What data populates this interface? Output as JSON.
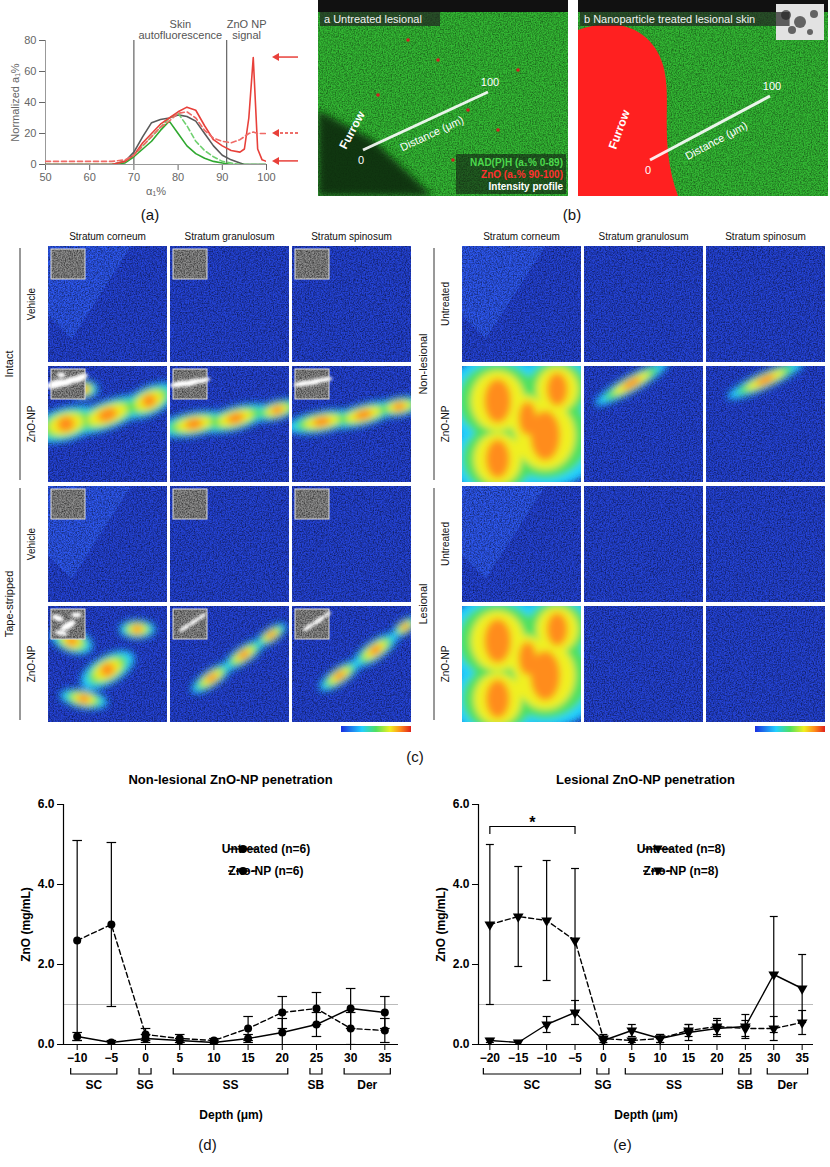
{
  "chart_data": [
    {
      "type": "line",
      "caption": "(a)",
      "x_label": "α₁%",
      "y_label": "Normalized a₁%",
      "x": [
        50,
        55,
        60,
        65,
        68,
        70,
        72,
        74,
        76,
        78,
        80,
        82,
        84,
        86,
        88,
        90,
        92,
        94,
        95,
        96,
        97,
        98,
        99,
        100
      ],
      "series": [
        {
          "color": "#5a5a5a",
          "line_style": "solid",
          "values": [
            0,
            0,
            0,
            0,
            2,
            8,
            18,
            27,
            29,
            30,
            32,
            31,
            28,
            20,
            12,
            6,
            3,
            1,
            0,
            0,
            0,
            0,
            0,
            0
          ]
        },
        {
          "color": "#2fa82f",
          "line_style": "solid",
          "values": [
            0,
            0,
            0,
            0,
            1,
            5,
            10,
            15,
            22,
            28,
            20,
            12,
            7,
            4,
            2,
            1,
            0,
            0,
            0,
            0,
            0,
            0,
            0,
            0
          ]
        },
        {
          "color": "#6fd06f",
          "line_style": "dashed",
          "values": [
            0,
            0,
            0,
            0,
            2,
            6,
            12,
            18,
            24,
            30,
            33,
            25,
            15,
            9,
            5,
            2,
            1,
            0,
            0,
            0,
            0,
            0,
            0,
            0
          ]
        },
        {
          "color": "#e8403a",
          "line_style": "solid",
          "values": [
            0,
            0,
            0,
            0,
            2,
            6,
            14,
            20,
            26,
            30,
            34,
            37,
            35,
            25,
            16,
            12,
            9,
            8,
            10,
            30,
            69,
            10,
            3,
            2
          ]
        },
        {
          "color": "#ef6a66",
          "line_style": "dashed",
          "values": [
            2,
            2,
            2,
            2,
            3,
            6,
            12,
            18,
            24,
            28,
            33,
            34,
            30,
            22,
            17,
            15,
            14,
            16,
            18,
            20,
            21,
            20,
            20,
            20
          ]
        }
      ],
      "xlim": [
        50,
        100
      ],
      "xticks": [
        50,
        60,
        70,
        80,
        90,
        100
      ],
      "ylim": [
        0,
        80
      ],
      "yticks": [
        0,
        20,
        40,
        60,
        80
      ],
      "vlines": [
        70,
        91
      ],
      "annotations": [
        "Skin autofluorescence",
        "ZnO NP signal"
      ],
      "arrows": [
        {
          "y": 69,
          "line_style": "solid"
        },
        {
          "y": 20,
          "line_style": "dashed"
        },
        {
          "y": 2,
          "line_style": "solid"
        }
      ]
    },
    {
      "type": "line",
      "caption": "(d)",
      "title": "Non-lesional ZnO-NP penetration",
      "x_label": "Depth (μm)",
      "y_label": "ZnO (mg/mL)",
      "x": [
        -10,
        -5,
        0,
        5,
        10,
        15,
        20,
        25,
        30,
        35
      ],
      "series": [
        {
          "name": "Untreated (n=6)",
          "color": "#000000",
          "line_style": "solid",
          "marker": "circle",
          "values": [
            0.2,
            0.05,
            0.15,
            0.1,
            0.05,
            0.15,
            0.3,
            0.5,
            0.9,
            0.8
          ],
          "errors": [
            0.1,
            0.05,
            0.1,
            0.05,
            0.05,
            0.1,
            0.35,
            0.3,
            0.5,
            0.4
          ]
        },
        {
          "name": "Zno-NP (n=6)",
          "color": "#000000",
          "line_style": "dashed",
          "marker": "circle",
          "values": [
            2.6,
            3.0,
            0.25,
            0.15,
            0.1,
            0.4,
            0.8,
            0.9,
            0.4,
            0.35
          ],
          "errors": [
            2.5,
            2.05,
            0.15,
            0.1,
            0.05,
            0.3,
            0.4,
            0.4,
            0.4,
            0.3
          ]
        }
      ],
      "xlim": [
        -12,
        37
      ],
      "xticks": [
        -10,
        -5,
        0,
        5,
        10,
        15,
        20,
        25,
        30,
        35
      ],
      "ylim": [
        0,
        6
      ],
      "yticks": [
        0,
        2,
        4,
        6
      ],
      "hline": 1,
      "layers": [
        {
          "label": "SC",
          "from": -10,
          "to": -5
        },
        {
          "label": "SG",
          "from": 0,
          "to": 0
        },
        {
          "label": "SS",
          "from": 5,
          "to": 20
        },
        {
          "label": "SB",
          "from": 25,
          "to": 25
        },
        {
          "label": "Der",
          "from": 30,
          "to": 35
        }
      ],
      "legend": "top-right"
    },
    {
      "type": "line",
      "caption": "(e)",
      "title": "Lesional ZnO-NP penetration",
      "x_label": "Depth (μm)",
      "y_label": "ZnO (mg/mL)",
      "x": [
        -20,
        -15,
        -10,
        -5,
        0,
        5,
        10,
        15,
        20,
        25,
        30,
        35
      ],
      "series": [
        {
          "name": "Untreated (n=8)",
          "color": "#000000",
          "line_style": "solid",
          "marker": "triangle-down",
          "values": [
            0.1,
            0.05,
            0.5,
            0.8,
            0.1,
            0.35,
            0.15,
            0.3,
            0.4,
            0.45,
            1.75,
            1.4
          ],
          "errors": [
            0.05,
            0.05,
            0.2,
            0.3,
            0.1,
            0.15,
            0.1,
            0.2,
            0.2,
            0.3,
            1.45,
            0.85
          ]
        },
        {
          "name": "Zno-NP (n=8)",
          "color": "#000000",
          "line_style": "dashed",
          "marker": "triangle-down",
          "values": [
            3.0,
            3.2,
            3.1,
            2.6,
            0.15,
            0.1,
            0.15,
            0.35,
            0.45,
            0.4,
            0.4,
            0.55
          ],
          "errors": [
            2.0,
            1.25,
            1.5,
            1.8,
            0.1,
            0.05,
            0.1,
            0.15,
            0.2,
            0.2,
            0.3,
            0.3
          ]
        }
      ],
      "xlim": [
        -22,
        37
      ],
      "xticks": [
        -20,
        -15,
        -10,
        -5,
        0,
        5,
        10,
        15,
        20,
        25,
        30,
        35
      ],
      "ylim": [
        0,
        6
      ],
      "yticks": [
        0,
        2,
        4,
        6
      ],
      "hline": 1,
      "layers": [
        {
          "label": "SC",
          "from": -20,
          "to": -5
        },
        {
          "label": "SG",
          "from": 0,
          "to": 0
        },
        {
          "label": "SS",
          "from": 5,
          "to": 20
        },
        {
          "label": "SB",
          "from": 25,
          "to": 25
        },
        {
          "label": "Der",
          "from": 30,
          "to": 35
        }
      ],
      "significance": {
        "label": "*",
        "from": -20,
        "to": -5,
        "y": 5.45
      },
      "legend": "top-right"
    }
  ],
  "panels": {
    "b": {
      "caption": "(b)",
      "images": [
        {
          "title": "a Untreated lesional",
          "furrow": "Furrow",
          "distance_start": "0",
          "distance_end": "100",
          "distance_label": "Distance (μm)",
          "legend": [
            {
              "label": "NAD(P)H (a₁% 0-89)",
              "color": "#4cd94c"
            },
            {
              "label": "ZnO (a₁% 90-100)",
              "color": "#ff3030"
            },
            {
              "label": "Intensity profile",
              "color": "#ffffff"
            }
          ]
        },
        {
          "title": "b Nanoparticle treated lesional skin",
          "furrow": "Furrow",
          "distance_start": "0",
          "distance_end": "100",
          "distance_label": "Distance (μm)"
        }
      ]
    },
    "c": {
      "caption": "(c)",
      "grids": [
        {
          "columns": [
            "Stratum corneum",
            "Stratum granulosum",
            "Stratum spinosum"
          ],
          "groups": [
            {
              "label": "Intact",
              "rows": [
                "Vehicle",
                "ZnO-NP"
              ]
            },
            {
              "label": "Tape-stripped",
              "rows": [
                "Vehicle",
                "ZnO-NP"
              ]
            }
          ]
        },
        {
          "columns": [
            "Stratum corneum",
            "Stratum granulosum",
            "Stratum spinosum"
          ],
          "groups": [
            {
              "label": "Non-lesional",
              "rows": [
                "Untreated",
                "ZnO-NP"
              ]
            },
            {
              "label": "Lesional",
              "rows": [
                "Untreated",
                "ZnO-NP"
              ]
            }
          ]
        }
      ]
    }
  }
}
